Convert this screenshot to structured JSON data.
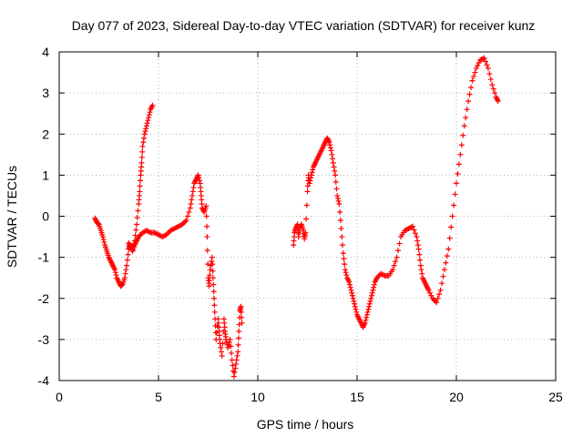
{
  "chart_data": {
    "type": "scatter",
    "title": "Day 077 of 2023, Sidereal Day-to-day VTEC variation (SDTVAR) for receiver kunz",
    "xlabel": "GPS time / hours",
    "ylabel": "SDTVAR / TECUs",
    "xlim": [
      0,
      25
    ],
    "ylim": [
      -4,
      4
    ],
    "xticks": [
      0,
      5,
      10,
      15,
      20,
      25
    ],
    "yticks": [
      -4,
      -3,
      -2,
      -1,
      0,
      1,
      2,
      3,
      4
    ],
    "grid": true,
    "legend": "none",
    "marker": "+",
    "series": [
      {
        "color": "#ff0000",
        "segments": [
          {
            "x": [
              1.8,
              1.9,
              2.0,
              2.1,
              2.2,
              2.3,
              2.4,
              2.5,
              2.6,
              2.7,
              2.8,
              2.9,
              3.0,
              3.1,
              3.2,
              3.3,
              3.4,
              3.5,
              3.55,
              3.6,
              3.7,
              3.8,
              3.9,
              4.0,
              4.05,
              4.1,
              4.15,
              4.2,
              4.3,
              4.4,
              4.5,
              4.6,
              4.7
            ],
            "y": [
              -0.05,
              -0.15,
              -0.2,
              -0.35,
              -0.5,
              -0.7,
              -0.85,
              -1.0,
              -1.1,
              -1.2,
              -1.3,
              -1.5,
              -1.6,
              -1.7,
              -1.65,
              -1.5,
              -1.2,
              -0.8,
              -0.7,
              -0.75,
              -0.8,
              -0.6,
              -0.2,
              0.3,
              0.6,
              1.0,
              1.3,
              1.7,
              2.0,
              2.2,
              2.4,
              2.6,
              2.7
            ]
          },
          {
            "x": [
              3.5,
              3.6,
              3.7,
              3.8,
              3.9,
              4.0,
              4.2,
              4.4,
              4.6,
              4.8,
              5.0,
              5.2,
              5.4,
              5.6,
              5.8,
              6.0,
              6.2,
              6.4,
              6.6,
              6.7,
              6.8,
              6.9,
              7.0,
              7.1,
              7.15,
              7.2,
              7.3,
              7.4,
              7.45,
              7.5,
              7.55,
              7.6,
              7.7,
              7.75,
              7.8,
              7.85,
              7.9,
              8.0,
              8.05,
              8.1,
              8.2,
              8.3,
              8.35,
              8.4,
              8.5,
              8.6,
              8.7,
              8.8,
              8.9,
              9.0,
              9.05,
              9.1,
              9.15,
              9.2
            ],
            "y": [
              -0.65,
              -0.75,
              -0.85,
              -0.7,
              -0.6,
              -0.5,
              -0.4,
              -0.35,
              -0.4,
              -0.4,
              -0.45,
              -0.5,
              -0.45,
              -0.35,
              -0.3,
              -0.25,
              -0.2,
              -0.1,
              0.2,
              0.5,
              0.8,
              0.9,
              1.0,
              0.8,
              0.5,
              0.2,
              0.1,
              0.25,
              -0.5,
              -1.5,
              -1.7,
              -1.3,
              -1.0,
              -1.5,
              -2.0,
              -2.5,
              -3.0,
              -2.5,
              -2.8,
              -3.1,
              -3.4,
              -2.5,
              -2.8,
              -3.0,
              -3.2,
              -3.0,
              -3.5,
              -3.9,
              -3.6,
              -3.3,
              -2.8,
              -2.3,
              -2.2,
              -2.6
            ]
          },
          {
            "x": [
              11.8,
              11.85,
              11.9,
              12.0,
              12.05,
              12.1,
              12.2,
              12.3,
              12.35,
              12.4,
              12.5,
              12.55,
              12.6,
              12.7,
              12.8,
              12.9,
              13.0,
              13.1,
              13.2,
              13.3,
              13.4,
              13.5,
              13.6,
              13.7,
              13.8,
              13.9,
              14.0,
              14.1,
              14.2,
              14.3,
              14.4,
              14.5,
              14.6,
              14.7,
              14.8,
              14.9,
              15.0,
              15.1,
              15.2,
              15.3,
              15.4,
              15.5,
              15.6,
              15.7,
              15.8,
              15.9,
              16.0,
              16.2,
              16.4,
              16.6,
              16.8,
              17.0,
              17.2,
              17.4,
              17.6,
              17.8,
              18.0,
              18.1,
              18.2,
              18.3,
              18.4,
              18.5,
              18.6,
              18.8,
              19.0,
              19.2,
              19.4,
              19.6,
              19.8,
              20.0,
              20.2,
              20.4,
              20.6,
              20.8,
              21.0,
              21.2,
              21.4,
              21.6,
              21.8,
              22.0,
              22.1
            ],
            "y": [
              -0.7,
              -0.4,
              -0.3,
              -0.2,
              -0.5,
              -0.3,
              -0.2,
              -0.35,
              -0.55,
              -0.4,
              0.6,
              1.0,
              0.8,
              1.0,
              1.2,
              1.3,
              1.4,
              1.5,
              1.6,
              1.7,
              1.8,
              1.9,
              1.8,
              1.6,
              1.3,
              1.0,
              0.5,
              0.3,
              -0.3,
              -0.9,
              -1.3,
              -1.5,
              -1.6,
              -1.8,
              -2.0,
              -2.2,
              -2.4,
              -2.5,
              -2.6,
              -2.7,
              -2.6,
              -2.4,
              -2.2,
              -2.0,
              -1.8,
              -1.6,
              -1.5,
              -1.4,
              -1.45,
              -1.45,
              -1.3,
              -1.0,
              -0.5,
              -0.35,
              -0.3,
              -0.25,
              -0.5,
              -0.8,
              -1.2,
              -1.5,
              -1.6,
              -1.7,
              -1.8,
              -2.0,
              -2.1,
              -1.8,
              -1.3,
              -0.8,
              0.0,
              0.8,
              1.5,
              2.2,
              2.8,
              3.3,
              3.6,
              3.8,
              3.85,
              3.6,
              3.2,
              2.9,
              2.8
            ]
          }
        ]
      }
    ]
  }
}
